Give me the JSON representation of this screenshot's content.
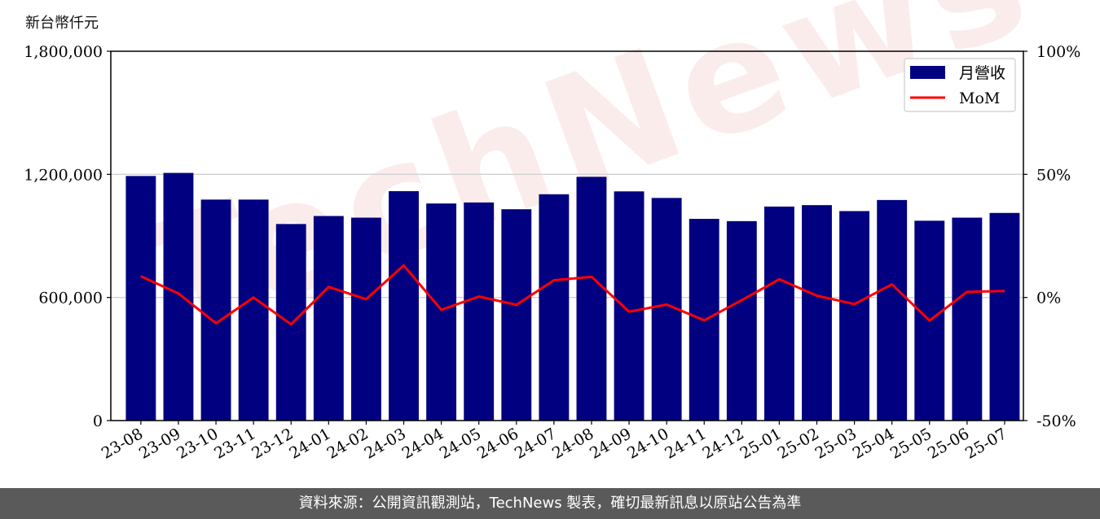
{
  "unit_label": "新台幣仟元",
  "footer_text": "資料來源：公開資訊觀測站，TechNews 製表，確切最新訊息以原站公告為準",
  "watermark_text": "TechNews",
  "colors": {
    "bar": "#000080",
    "line": "#ff0000",
    "grid": "#d0d0d0",
    "footer_bg": "#5a5a5a"
  },
  "chart_data": {
    "type": "bar",
    "categories": [
      "23-08",
      "23-09",
      "23-10",
      "23-11",
      "23-12",
      "24-01",
      "24-02",
      "24-03",
      "24-04",
      "24-05",
      "24-06",
      "24-07",
      "24-08",
      "24-09",
      "24-10",
      "24-11",
      "24-12",
      "25-01",
      "25-02",
      "25-03",
      "25-04",
      "25-05",
      "25-06",
      "25-07"
    ],
    "series": [
      {
        "name": "月營收",
        "type": "bar",
        "axis": "left",
        "values": [
          1192000,
          1207000,
          1077000,
          1077000,
          958000,
          997000,
          989000,
          1118000,
          1058000,
          1063000,
          1030000,
          1103000,
          1188000,
          1117000,
          1085000,
          983000,
          972000,
          1043000,
          1050000,
          1021000,
          1075000,
          974000,
          989000,
          1012000
        ]
      },
      {
        "name": "MoM",
        "type": "line",
        "axis": "right",
        "unit": "%",
        "values": [
          8.6,
          1.6,
          -10.5,
          0.0,
          -10.9,
          4.3,
          -0.7,
          13.0,
          -5.0,
          0.4,
          -3.0,
          7.0,
          8.4,
          -5.8,
          -2.9,
          -9.3,
          -1.1,
          7.4,
          0.7,
          -2.7,
          5.3,
          -9.4,
          2.3,
          2.6
        ]
      }
    ],
    "ylim_left": [
      0,
      1800000
    ],
    "yticks_left": [
      "0",
      "600,000",
      "1,200,000",
      "1,800,000"
    ],
    "ylim_right": [
      -50,
      100
    ],
    "yticks_right": [
      "-50%",
      "0%",
      "50%",
      "100%"
    ],
    "legend_position": "top-right",
    "grid": "horizontal"
  }
}
